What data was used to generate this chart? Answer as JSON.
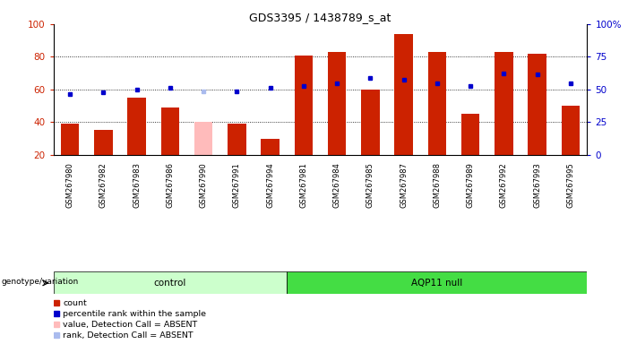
{
  "title": "GDS3395 / 1438789_s_at",
  "samples": [
    "GSM267980",
    "GSM267982",
    "GSM267983",
    "GSM267986",
    "GSM267990",
    "GSM267991",
    "GSM267994",
    "GSM267981",
    "GSM267984",
    "GSM267985",
    "GSM267987",
    "GSM267988",
    "GSM267989",
    "GSM267992",
    "GSM267993",
    "GSM267995"
  ],
  "n_control": 7,
  "n_aqp11": 9,
  "bar_values": [
    39,
    35,
    55,
    49,
    40,
    39,
    30,
    81,
    83,
    60,
    94,
    83,
    45,
    83,
    82,
    50
  ],
  "absent_bar_idx": [
    4
  ],
  "dot_values": [
    57,
    58,
    60,
    61,
    59,
    59,
    61,
    62,
    64,
    67,
    66,
    64,
    62,
    70,
    69,
    64
  ],
  "absent_dot_idx": [
    4
  ],
  "ymin": 20,
  "ymax": 100,
  "yticks_left": [
    20,
    40,
    60,
    80,
    100
  ],
  "yticks_right_labels": [
    "0",
    "25",
    "50",
    "75",
    "100%"
  ],
  "yticks_right_vals": [
    20,
    40,
    60,
    80,
    100
  ],
  "bar_color_normal": "#cc2200",
  "bar_color_absent": "#ffbbbb",
  "dot_color_normal": "#0000cc",
  "dot_color_absent": "#aabbee",
  "control_label": "control",
  "aqp11_label": "AQP11 null",
  "genotype_label": "genotype/variation",
  "tick_label_color_left": "#cc2200",
  "tick_label_color_right": "#0000cc",
  "ctrl_bg": "#ccffcc",
  "aqp11_bg": "#44dd44",
  "grey_bg": "#d8d8d8"
}
